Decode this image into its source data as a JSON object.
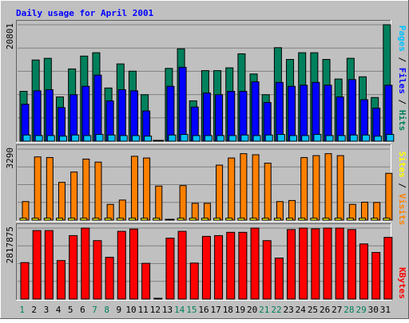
{
  "chart_data": [
    {
      "type": "bar",
      "title": "Daily usage for April 2001",
      "panel": "hits-files-pages",
      "categories": [
        "1",
        "2",
        "3",
        "4",
        "5",
        "6",
        "7",
        "8",
        "9",
        "10",
        "11",
        "12",
        "13",
        "14",
        "15",
        "16",
        "17",
        "18",
        "19",
        "20",
        "21",
        "22",
        "23",
        "24",
        "25",
        "26",
        "27",
        "28",
        "29",
        "30",
        "31"
      ],
      "weekend_categories": [
        "1",
        "7",
        "8",
        "14",
        "15",
        "21",
        "22",
        "28",
        "29"
      ],
      "ymax_label": "20801",
      "ylim": [
        0,
        20801
      ],
      "grid": true,
      "series": [
        {
          "name": "Hits",
          "color": "#00805c",
          "values": [
            8900,
            14500,
            14800,
            7900,
            12900,
            15200,
            15800,
            9500,
            13800,
            12500,
            8300,
            80,
            13000,
            16500,
            7200,
            12600,
            12600,
            13100,
            15600,
            12000,
            8300,
            16700,
            14600,
            15800,
            15800,
            14600,
            11100,
            14800,
            11500,
            7800,
            20801
          ]
        },
        {
          "name": "Files",
          "color": "#0000ff",
          "values": [
            6600,
            9000,
            9200,
            6000,
            8300,
            9800,
            11800,
            7200,
            9200,
            9000,
            5400,
            60,
            9800,
            13200,
            6100,
            8600,
            8300,
            8900,
            8900,
            10600,
            6900,
            10500,
            9800,
            10000,
            10500,
            10000,
            7900,
            11000,
            7400,
            5900,
            10000
          ]
        },
        {
          "name": "Pages",
          "color": "#00c0ff",
          "values": [
            1100,
            1000,
            1000,
            900,
            1100,
            1000,
            1200,
            1100,
            1000,
            1000,
            900,
            50,
            1100,
            1200,
            1000,
            1000,
            1000,
            1000,
            1100,
            1000,
            1100,
            1200,
            1000,
            1000,
            1200,
            1000,
            1000,
            1100,
            1100,
            900,
            1200
          ]
        }
      ]
    },
    {
      "type": "bar",
      "panel": "visits-sites",
      "categories": [
        "1",
        "2",
        "3",
        "4",
        "5",
        "6",
        "7",
        "8",
        "9",
        "10",
        "11",
        "12",
        "13",
        "14",
        "15",
        "16",
        "17",
        "18",
        "19",
        "20",
        "21",
        "22",
        "23",
        "24",
        "25",
        "26",
        "27",
        "28",
        "29",
        "30",
        "31"
      ],
      "ymax_label": "3290",
      "ylim": [
        0,
        3290
      ],
      "grid": true,
      "series": [
        {
          "name": "Visits",
          "color": "#ff8000",
          "values": [
            860,
            2930,
            2900,
            1750,
            2230,
            2830,
            2690,
            730,
            930,
            2960,
            2880,
            1580,
            40,
            1600,
            780,
            780,
            2550,
            2880,
            3080,
            3030,
            2640,
            860,
            910,
            2900,
            2990,
            3080,
            2990,
            730,
            830,
            820,
            2170
          ]
        },
        {
          "name": "Sites",
          "color": "#ffff00",
          "values": [
            90,
            90,
            90,
            90,
            90,
            90,
            90,
            90,
            90,
            90,
            90,
            90,
            10,
            90,
            90,
            90,
            90,
            90,
            90,
            90,
            90,
            90,
            90,
            90,
            90,
            90,
            90,
            90,
            90,
            90,
            90
          ]
        }
      ]
    },
    {
      "type": "bar",
      "panel": "kbytes",
      "categories": [
        "1",
        "2",
        "3",
        "4",
        "5",
        "6",
        "7",
        "8",
        "9",
        "10",
        "11",
        "12",
        "13",
        "14",
        "15",
        "16",
        "17",
        "18",
        "19",
        "20",
        "21",
        "22",
        "23",
        "24",
        "25",
        "26",
        "27",
        "28",
        "29",
        "30",
        "31"
      ],
      "ymax_label": "2817875",
      "ylim": [
        0,
        2817875
      ],
      "grid": true,
      "series": [
        {
          "name": "KBytes",
          "color": "#ff0000",
          "values": [
            1450000,
            2720000,
            2720000,
            1530000,
            2520000,
            2817875,
            2320000,
            1660000,
            2690000,
            2780000,
            1420000,
            30000,
            2420000,
            2690000,
            1430000,
            2490000,
            2520000,
            2650000,
            2650000,
            2817875,
            2320000,
            1630000,
            2760000,
            2817875,
            2790000,
            2817875,
            2817875,
            2760000,
            2190000,
            1850000,
            2450000
          ]
        }
      ]
    }
  ]
}
